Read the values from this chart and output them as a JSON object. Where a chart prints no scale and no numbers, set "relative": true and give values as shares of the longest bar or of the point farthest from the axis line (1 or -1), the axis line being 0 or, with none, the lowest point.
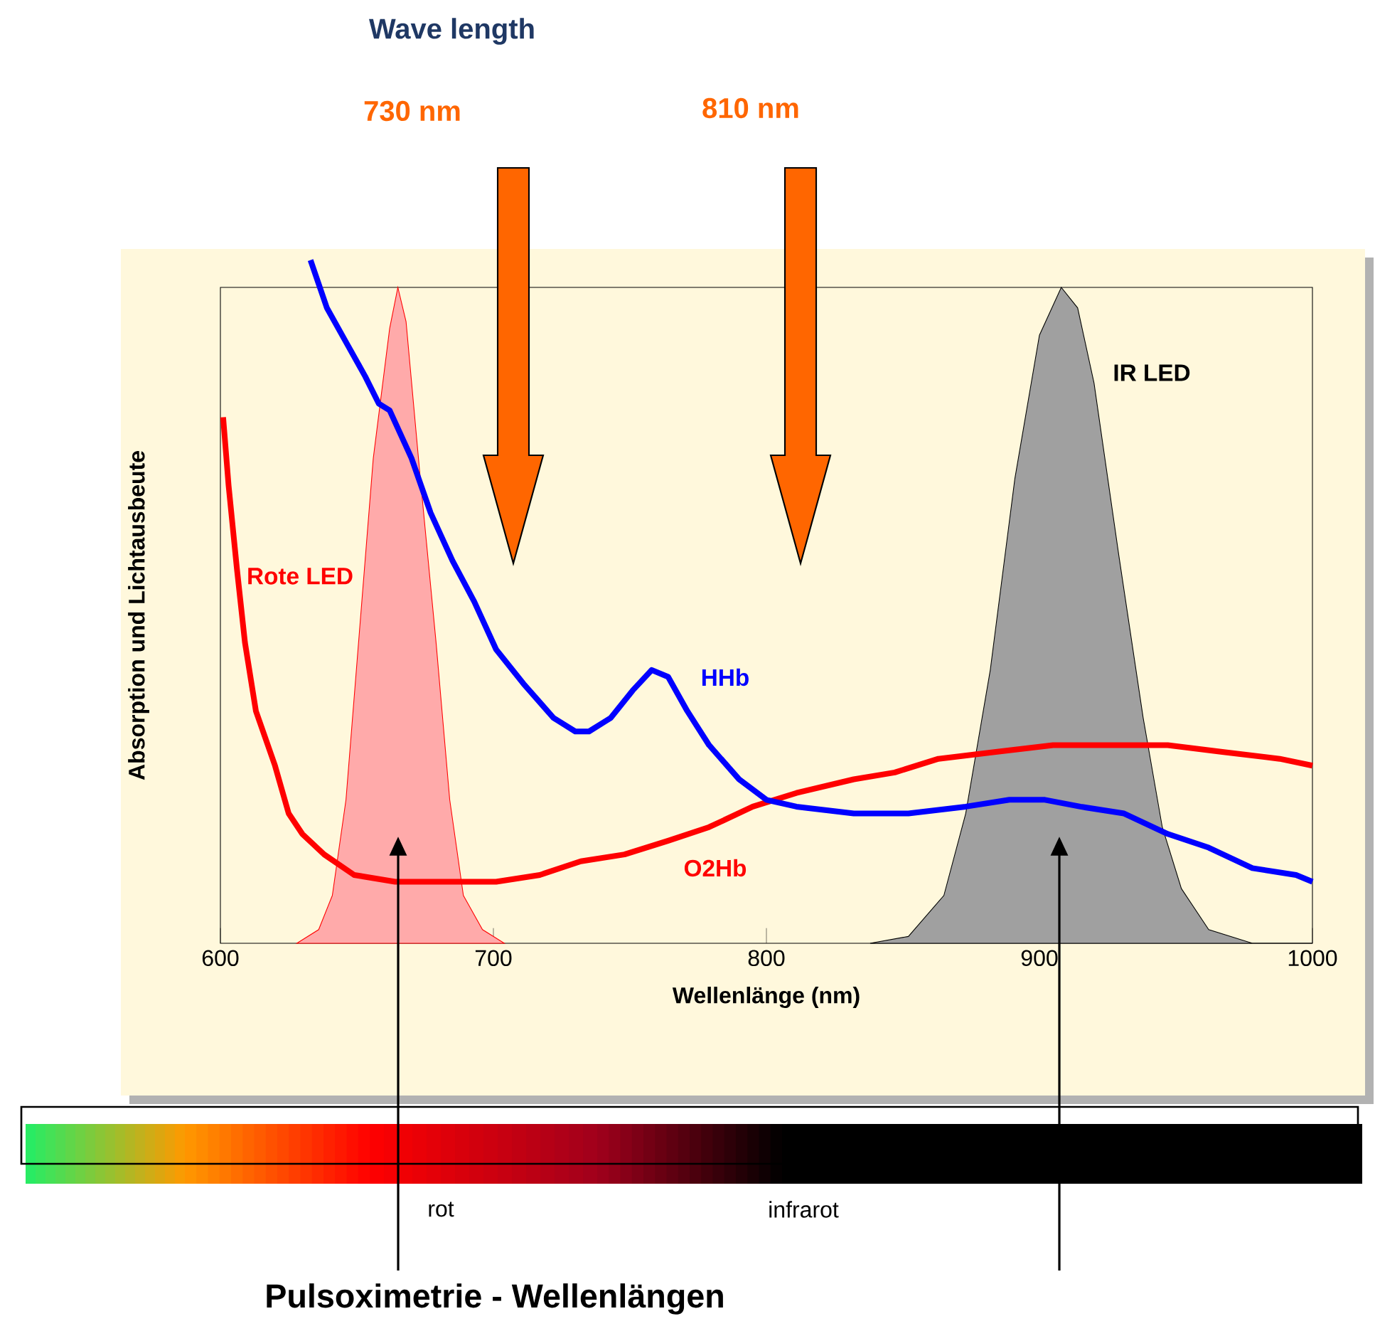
{
  "chart_data": {
    "type": "line",
    "title": "Wave length",
    "xlabel": "Wellenlänge (nm)",
    "ylabel": "Absorption und Lichtausbeute",
    "relative": true,
    "xlim": [
      600,
      1000
    ],
    "xticks": [
      600,
      700,
      800,
      900,
      1000
    ],
    "annotations": [
      "730 nm",
      "810 nm",
      "rot",
      "infrarot",
      "Pulsoximetrie - Wellenlängen"
    ],
    "series": [
      {
        "name": "Rote LED",
        "type": "area",
        "color": "#ffaaaa",
        "x": [
          628,
          636,
          641,
          646,
          651,
          656,
          662,
          665,
          668,
          673,
          679,
          684,
          689,
          696,
          704
        ],
        "values": [
          0,
          0.02,
          0.07,
          0.21,
          0.46,
          0.71,
          0.9,
          0.96,
          0.91,
          0.69,
          0.44,
          0.21,
          0.07,
          0.02,
          0
        ]
      },
      {
        "name": "IR LED",
        "type": "area",
        "color": "#a0a0a0",
        "x": [
          838,
          852,
          865,
          873,
          882,
          891,
          900,
          908,
          914,
          920,
          929,
          938,
          945,
          952,
          962,
          978,
          1000
        ],
        "values": [
          0,
          0.01,
          0.07,
          0.19,
          0.4,
          0.68,
          0.89,
          0.96,
          0.93,
          0.82,
          0.57,
          0.33,
          0.17,
          0.08,
          0.02,
          0,
          0
        ]
      },
      {
        "name": "O2Hb",
        "type": "line",
        "color": "#ff0000",
        "x": [
          601,
          603,
          606,
          609,
          613,
          620,
          625,
          630,
          638,
          649,
          664,
          685,
          701,
          717,
          732,
          748,
          764,
          779,
          795,
          811,
          832,
          847,
          863,
          884,
          905,
          926,
          947,
          967,
          988,
          1000
        ],
        "values": [
          0.77,
          0.67,
          0.55,
          0.44,
          0.34,
          0.26,
          0.19,
          0.16,
          0.13,
          0.1,
          0.09,
          0.09,
          0.09,
          0.1,
          0.12,
          0.13,
          0.15,
          0.17,
          0.2,
          0.22,
          0.24,
          0.25,
          0.27,
          0.28,
          0.29,
          0.29,
          0.29,
          0.28,
          0.27,
          0.26
        ]
      },
      {
        "name": "HHb",
        "type": "line",
        "color": "#0000ff",
        "x": [
          633,
          639,
          646,
          653,
          658,
          662,
          670,
          677,
          685,
          693,
          701,
          711,
          722,
          730,
          735,
          743,
          751,
          758,
          764,
          771,
          779,
          790,
          800,
          811,
          832,
          852,
          873,
          889,
          902,
          915,
          931,
          947,
          962,
          978,
          994,
          1000
        ],
        "values": [
          1,
          0.93,
          0.88,
          0.83,
          0.79,
          0.78,
          0.71,
          0.63,
          0.56,
          0.5,
          0.43,
          0.38,
          0.33,
          0.31,
          0.31,
          0.33,
          0.37,
          0.4,
          0.39,
          0.34,
          0.29,
          0.24,
          0.21,
          0.2,
          0.19,
          0.19,
          0.2,
          0.21,
          0.21,
          0.2,
          0.19,
          0.16,
          0.14,
          0.11,
          0.1,
          0.09
        ]
      }
    ]
  }
}
